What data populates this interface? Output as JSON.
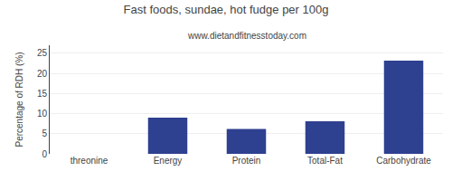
{
  "chart_data": {
    "type": "bar",
    "title": "Fast foods, sundae, hot fudge per 100g",
    "subtitle": "www.dietandfitnesstoday.com",
    "categories": [
      "threonine",
      "Energy",
      "Protein",
      "Total-Fat",
      "Carbohydrate"
    ],
    "values": [
      0,
      9.0,
      6.2,
      8.1,
      23.2
    ],
    "color": "#2e4090",
    "ylabel": "Percentage of RDH (%)",
    "ylim": [
      0,
      27
    ],
    "yticks": [
      0,
      5,
      10,
      15,
      20,
      25
    ],
    "grid": true
  }
}
